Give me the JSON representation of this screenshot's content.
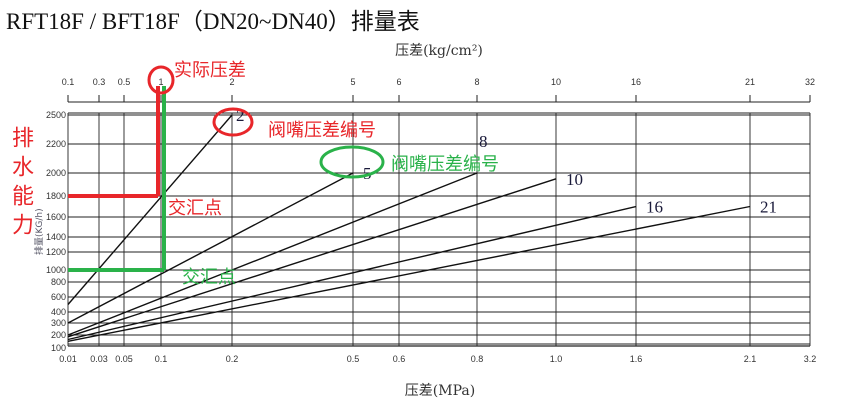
{
  "title": "RFT18F / BFT18F（DN20~DN40）排量表",
  "chart_data": {
    "type": "line",
    "title": "RFT18F / BFT18F（DN20~DN40）排量表",
    "xlabel": "压差(MPa)",
    "x2label": "压差(kg/cm²)",
    "ylabel": "排量(KG/h)",
    "x_ticks": [
      0.01,
      0.03,
      0.05,
      0.1,
      0.2,
      0.5,
      0.6,
      0.8,
      1.0,
      1.6,
      2.1,
      3.2
    ],
    "x_tick_labels": [
      "0.01",
      "0.03",
      "0.05",
      "0.1",
      "0.2",
      "0.5",
      "0.6",
      "0.8",
      "1.0",
      "1.6",
      "2.1",
      "3.2"
    ],
    "x2_tick_labels": [
      "0.1",
      "0.3",
      "0.5",
      "1",
      "2",
      "5",
      "6",
      "8",
      "10",
      "16",
      "21",
      "32"
    ],
    "y_ticks": [
      100,
      200,
      300,
      400,
      600,
      800,
      1000,
      1200,
      1400,
      1600,
      1800,
      2000,
      2200,
      2500
    ],
    "y_tick_labels": [
      "100",
      "200",
      "300",
      "400",
      "600",
      "800",
      "1000",
      "1200",
      "1400",
      "1600",
      "1800",
      "2000",
      "2200",
      "2500"
    ],
    "xlim": [
      0.01,
      3.2
    ],
    "ylim": [
      100,
      2500
    ],
    "grid": true,
    "series": [
      {
        "name": "2",
        "points": [
          [
            0.01,
            500
          ],
          [
            0.2,
            2500
          ]
        ]
      },
      {
        "name": "5",
        "points": [
          [
            0.01,
            300
          ],
          [
            0.5,
            2000
          ]
        ]
      },
      {
        "name": "8",
        "points": [
          [
            0.01,
            200
          ],
          [
            0.8,
            2000
          ]
        ]
      },
      {
        "name": "10",
        "points": [
          [
            0.01,
            180
          ],
          [
            1.0,
            1950
          ]
        ]
      },
      {
        "name": "16",
        "points": [
          [
            0.01,
            150
          ],
          [
            1.6,
            1700
          ]
        ]
      },
      {
        "name": "21",
        "points": [
          [
            0.01,
            130
          ],
          [
            2.1,
            1700
          ]
        ]
      }
    ],
    "annotations": {
      "actual_pressure": "实际压差",
      "side_label": "排水能力",
      "nozzle_label_red": "阀嘴压差编号",
      "nozzle_label_green": "阀嘴压差编号",
      "intersection_red": "交汇点",
      "intersection_green": "交汇点",
      "red_example": {
        "x": 0.1,
        "y": 1800
      },
      "green_example": {
        "x": 0.1,
        "y": 1000
      },
      "red_color": "#e8262a",
      "green_color": "#2ab24a"
    }
  }
}
